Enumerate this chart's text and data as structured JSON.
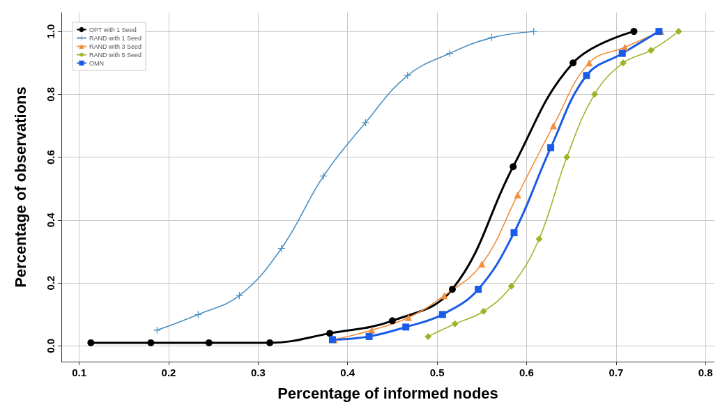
{
  "chart_data": {
    "type": "line",
    "xlabel": "Percentage of informed nodes",
    "ylabel": "Percentage of observations",
    "xlim": [
      0.08,
      0.81
    ],
    "ylim": [
      -0.05,
      1.06
    ],
    "xticks": [
      0.1,
      0.2,
      0.3,
      0.4,
      0.5,
      0.6,
      0.7,
      0.8
    ],
    "yticks": [
      {
        "value": 0,
        "label": "0.0"
      },
      0.2,
      0.4,
      0.6,
      0.8,
      {
        "value": 1,
        "label": "1.0"
      }
    ],
    "grid": true,
    "legend": "top left",
    "series": [
      {
        "name": "OPT with 1 Seed",
        "color": "#000000",
        "marker": "circle",
        "x": [
          0.113,
          0.18,
          0.245,
          0.313,
          0.38,
          0.45,
          0.517,
          0.585,
          0.652,
          0.72
        ],
        "values": [
          0.01,
          0.01,
          0.01,
          0.01,
          0.04,
          0.08,
          0.18,
          0.57,
          0.9,
          1.0
        ]
      },
      {
        "name": "RAND with 1 Seed",
        "color": "#4a90c4",
        "marker": "cross",
        "x": [
          0.187,
          0.233,
          0.279,
          0.326,
          0.373,
          0.42,
          0.467,
          0.514,
          0.561,
          0.608
        ],
        "values": [
          0.05,
          0.1,
          0.16,
          0.31,
          0.54,
          0.71,
          0.86,
          0.93,
          0.98,
          1.0
        ]
      },
      {
        "name": "RAND with 3 Seed",
        "color": "#f28e3c",
        "marker": "triangle",
        "x": [
          0.385,
          0.427,
          0.468,
          0.508,
          0.55,
          0.59,
          0.63,
          0.67,
          0.71,
          0.75
        ],
        "values": [
          0.02,
          0.05,
          0.09,
          0.16,
          0.26,
          0.48,
          0.7,
          0.9,
          0.95,
          1.0
        ]
      },
      {
        "name": "RAND with 5 Seed",
        "color": "#9bb52a",
        "marker": "diamond",
        "x": [
          0.49,
          0.52,
          0.552,
          0.583,
          0.614,
          0.645,
          0.676,
          0.708,
          0.739,
          0.77
        ],
        "values": [
          0.03,
          0.07,
          0.11,
          0.19,
          0.34,
          0.6,
          0.8,
          0.9,
          0.94,
          1.0
        ]
      },
      {
        "name": "OMN",
        "color": "#1a5ce8",
        "marker": "square",
        "x": [
          0.383,
          0.424,
          0.465,
          0.506,
          0.546,
          0.586,
          0.627,
          0.667,
          0.707,
          0.748
        ],
        "values": [
          0.02,
          0.03,
          0.06,
          0.1,
          0.18,
          0.36,
          0.63,
          0.86,
          0.93,
          1.0
        ]
      }
    ]
  }
}
